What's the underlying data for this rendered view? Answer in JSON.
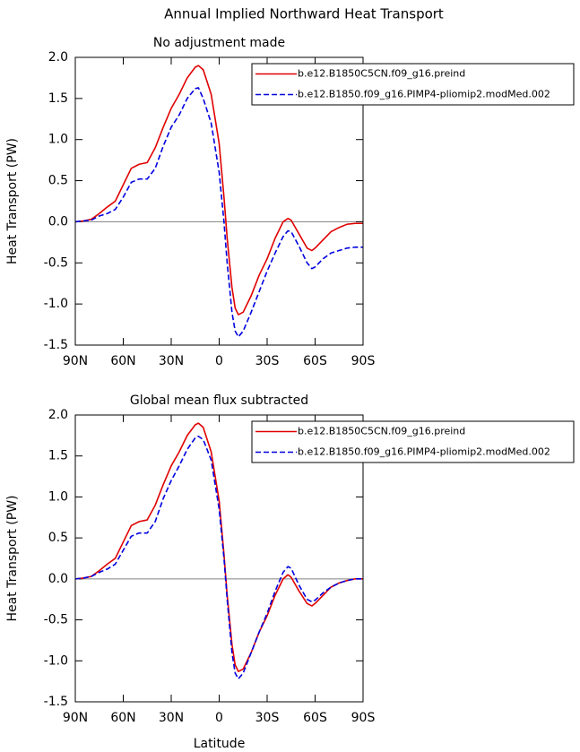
{
  "title": "Annual Implied Northward Heat Transport",
  "chart_data": [
    {
      "type": "line",
      "title": "No adjustment made",
      "ylabel": "Heat Transport (PW)",
      "x": [
        90,
        85,
        80,
        75,
        70,
        65,
        60,
        55,
        50,
        45,
        40,
        35,
        30,
        25,
        20,
        15,
        13,
        10,
        5,
        0,
        -3,
        -5,
        -8,
        -10,
        -12,
        -15,
        -20,
        -25,
        -30,
        -35,
        -40,
        -43,
        -45,
        -50,
        -55,
        -58,
        -60,
        -65,
        -70,
        -75,
        -80,
        -85,
        -90
      ],
      "series": [
        {
          "name": "b.e12.B1850C5CN.f09_g16.preind",
          "color": "#e00000",
          "dash": "solid",
          "values": [
            0,
            0.01,
            0.03,
            0.1,
            0.18,
            0.25,
            0.45,
            0.65,
            0.7,
            0.72,
            0.9,
            1.15,
            1.38,
            1.55,
            1.75,
            1.88,
            1.9,
            1.85,
            1.55,
            0.95,
            0.3,
            -0.2,
            -0.8,
            -1.05,
            -1.13,
            -1.1,
            -0.9,
            -0.65,
            -0.45,
            -0.2,
            0.0,
            0.04,
            0.02,
            -0.15,
            -0.32,
            -0.35,
            -0.32,
            -0.22,
            -0.12,
            -0.07,
            -0.03,
            -0.02,
            -0.02
          ]
        },
        {
          "name": "b.e12.B1850.f09_g16.PIMP4-pliomip2.modMed.002",
          "color": "#0000e0",
          "dash": "dashed",
          "values": [
            0,
            0.01,
            0.02,
            0.07,
            0.1,
            0.15,
            0.3,
            0.48,
            0.52,
            0.52,
            0.65,
            0.92,
            1.15,
            1.3,
            1.5,
            1.62,
            1.63,
            1.5,
            1.2,
            0.6,
            0.0,
            -0.5,
            -1.1,
            -1.33,
            -1.4,
            -1.33,
            -1.1,
            -0.85,
            -0.6,
            -0.38,
            -0.18,
            -0.11,
            -0.12,
            -0.3,
            -0.5,
            -0.57,
            -0.55,
            -0.45,
            -0.38,
            -0.35,
            -0.32,
            -0.31,
            -0.31
          ]
        }
      ],
      "xlim": [
        90,
        -90
      ],
      "xticks": [
        {
          "value": 90,
          "label": "90N"
        },
        {
          "value": 60,
          "label": "60N"
        },
        {
          "value": 30,
          "label": "30N"
        },
        0,
        {
          "value": -30,
          "label": "30S"
        },
        {
          "value": -60,
          "label": "60S"
        },
        {
          "value": -90,
          "label": "90S"
        }
      ],
      "ylim": [
        -1.5,
        2.0
      ],
      "yticks": [
        -1.5,
        {
          "value": -1,
          "label": "-1.0"
        },
        -0.5,
        {
          "value": 0,
          "label": "0.0"
        },
        0.5,
        {
          "value": 1,
          "label": "1.0"
        },
        1.5,
        {
          "value": 2,
          "label": "2.0"
        }
      ],
      "legend": "upper right"
    },
    {
      "type": "line",
      "title": "Global mean flux subtracted",
      "ylabel": "Heat Transport (PW)",
      "xlabel": "Latitude",
      "x": [
        90,
        85,
        80,
        75,
        70,
        65,
        60,
        55,
        50,
        45,
        40,
        35,
        30,
        25,
        20,
        15,
        13,
        10,
        5,
        0,
        -3,
        -5,
        -8,
        -10,
        -12,
        -15,
        -20,
        -25,
        -30,
        -35,
        -40,
        -43,
        -45,
        -50,
        -55,
        -58,
        -60,
        -65,
        -70,
        -75,
        -80,
        -85,
        -90
      ],
      "series": [
        {
          "name": "b.e12.B1850C5CN.f09_g16.preind",
          "color": "#e00000",
          "dash": "solid",
          "values": [
            0,
            0.01,
            0.03,
            0.1,
            0.18,
            0.25,
            0.45,
            0.65,
            0.7,
            0.72,
            0.9,
            1.15,
            1.38,
            1.55,
            1.75,
            1.88,
            1.9,
            1.85,
            1.55,
            0.95,
            0.3,
            -0.2,
            -0.8,
            -1.05,
            -1.13,
            -1.1,
            -0.9,
            -0.65,
            -0.45,
            -0.2,
            0.0,
            0.05,
            0.02,
            -0.15,
            -0.3,
            -0.33,
            -0.3,
            -0.2,
            -0.1,
            -0.05,
            -0.02,
            0,
            0
          ]
        },
        {
          "name": "b.e12.B1850.f09_g16.PIMP4-pliomip2.modMed.002",
          "color": "#0000e0",
          "dash": "dashed",
          "values": [
            0,
            0.01,
            0.03,
            0.08,
            0.12,
            0.18,
            0.35,
            0.52,
            0.56,
            0.56,
            0.7,
            0.98,
            1.2,
            1.38,
            1.58,
            1.72,
            1.74,
            1.7,
            1.45,
            0.85,
            0.25,
            -0.25,
            -0.9,
            -1.15,
            -1.22,
            -1.15,
            -0.9,
            -0.65,
            -0.42,
            -0.15,
            0.08,
            0.15,
            0.13,
            -0.08,
            -0.25,
            -0.28,
            -0.26,
            -0.17,
            -0.1,
            -0.05,
            -0.02,
            0,
            0
          ]
        }
      ],
      "xlim": [
        90,
        -90
      ],
      "xticks": [
        {
          "value": 90,
          "label": "90N"
        },
        {
          "value": 60,
          "label": "60N"
        },
        {
          "value": 30,
          "label": "30N"
        },
        0,
        {
          "value": -30,
          "label": "30S"
        },
        {
          "value": -60,
          "label": "60S"
        },
        {
          "value": -90,
          "label": "90S"
        }
      ],
      "ylim": [
        -1.5,
        2.0
      ],
      "yticks": [
        -1.5,
        {
          "value": -1,
          "label": "-1.0"
        },
        -0.5,
        {
          "value": 0,
          "label": "0.0"
        },
        0.5,
        {
          "value": 1,
          "label": "1.0"
        },
        1.5,
        {
          "value": 2,
          "label": "2.0"
        }
      ],
      "legend": "upper right"
    }
  ]
}
